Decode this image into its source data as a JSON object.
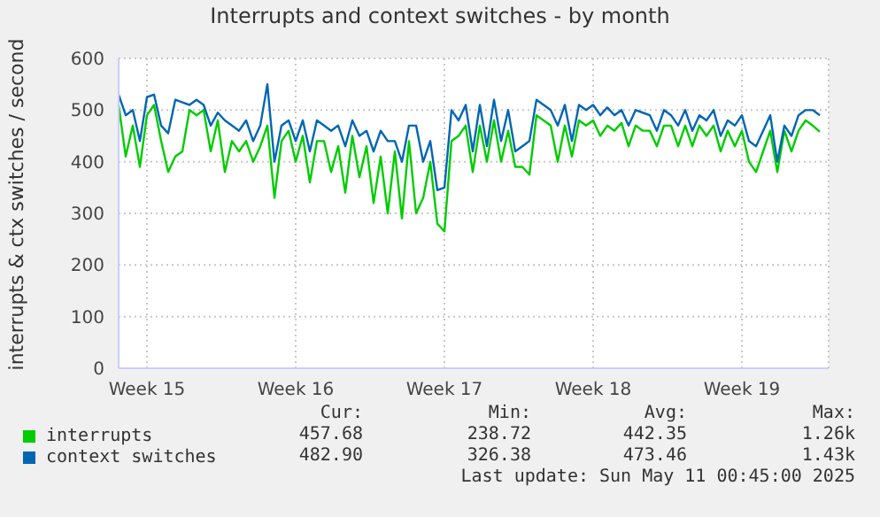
{
  "chart_data": {
    "type": "line",
    "title": "Interrupts and context switches - by month",
    "ylabel": "interrupts & ctx switches / second",
    "categories": [
      null,
      null,
      null,
      null,
      "Week 15",
      null,
      null,
      null,
      null,
      null,
      null,
      null,
      null,
      null,
      null,
      null,
      null,
      null,
      null,
      null,
      null,
      null,
      null,
      null,
      null,
      "Week 16",
      null,
      null,
      null,
      null,
      null,
      null,
      null,
      null,
      null,
      null,
      null,
      null,
      null,
      null,
      null,
      null,
      null,
      null,
      null,
      null,
      "Week 17",
      null,
      null,
      null,
      null,
      null,
      null,
      null,
      null,
      null,
      null,
      null,
      null,
      null,
      null,
      null,
      null,
      null,
      null,
      null,
      null,
      "Week 18",
      null,
      null,
      null,
      null,
      null,
      null,
      null,
      null,
      null,
      null,
      null,
      null,
      null,
      null,
      null,
      null,
      null,
      null,
      null,
      null,
      "Week 19",
      null,
      null,
      null,
      null,
      null,
      null,
      null,
      null,
      null,
      null,
      null
    ],
    "series": [
      {
        "name": "interrupts",
        "color": "#00cc00",
        "values": [
          510,
          410,
          470,
          390,
          490,
          510,
          440,
          380,
          410,
          420,
          500,
          490,
          500,
          420,
          480,
          380,
          440,
          420,
          440,
          400,
          430,
          470,
          330,
          440,
          460,
          400,
          450,
          360,
          440,
          440,
          380,
          430,
          340,
          450,
          370,
          430,
          320,
          410,
          300,
          420,
          290,
          440,
          300,
          330,
          400,
          280,
          265,
          440,
          450,
          470,
          380,
          470,
          400,
          480,
          400,
          460,
          390,
          390,
          375,
          490,
          480,
          470,
          400,
          470,
          410,
          480,
          470,
          480,
          450,
          470,
          460,
          475,
          430,
          470,
          460,
          460,
          430,
          470,
          470,
          430,
          470,
          430,
          470,
          450,
          470,
          420,
          460,
          430,
          460,
          400,
          380,
          420,
          460,
          380,
          460,
          420,
          460,
          480,
          470,
          458
        ]
      },
      {
        "name": "context switches",
        "color": "#0066b3",
        "values": [
          530,
          490,
          500,
          440,
          525,
          530,
          470,
          455,
          520,
          515,
          510,
          520,
          510,
          470,
          495,
          480,
          470,
          460,
          480,
          440,
          470,
          550,
          400,
          470,
          480,
          440,
          480,
          420,
          480,
          470,
          460,
          470,
          430,
          480,
          450,
          460,
          420,
          460,
          440,
          440,
          400,
          470,
          470,
          400,
          440,
          345,
          350,
          500,
          480,
          510,
          420,
          510,
          430,
          520,
          440,
          500,
          420,
          430,
          440,
          520,
          510,
          500,
          470,
          510,
          440,
          510,
          500,
          510,
          490,
          505,
          490,
          500,
          470,
          500,
          495,
          490,
          460,
          500,
          490,
          470,
          500,
          460,
          490,
          480,
          500,
          450,
          480,
          470,
          490,
          440,
          430,
          460,
          490,
          400,
          470,
          450,
          490,
          500,
          500,
          490
        ]
      }
    ],
    "ylim": [
      0,
      600
    ],
    "yticks": [
      0,
      100,
      200,
      300,
      400,
      500,
      600
    ],
    "grid": true,
    "legend": "bottom",
    "marker": "none",
    "line_style": "solid",
    "annotations": [
      "Cur:",
      "Min:",
      "Avg:",
      "Max:",
      "457.68",
      "238.72",
      "442.35",
      "1.26k",
      "482.90",
      "326.38",
      "473.46",
      "1.43k",
      "Last update: Sun May 11 00:45:00 2025"
    ]
  }
}
